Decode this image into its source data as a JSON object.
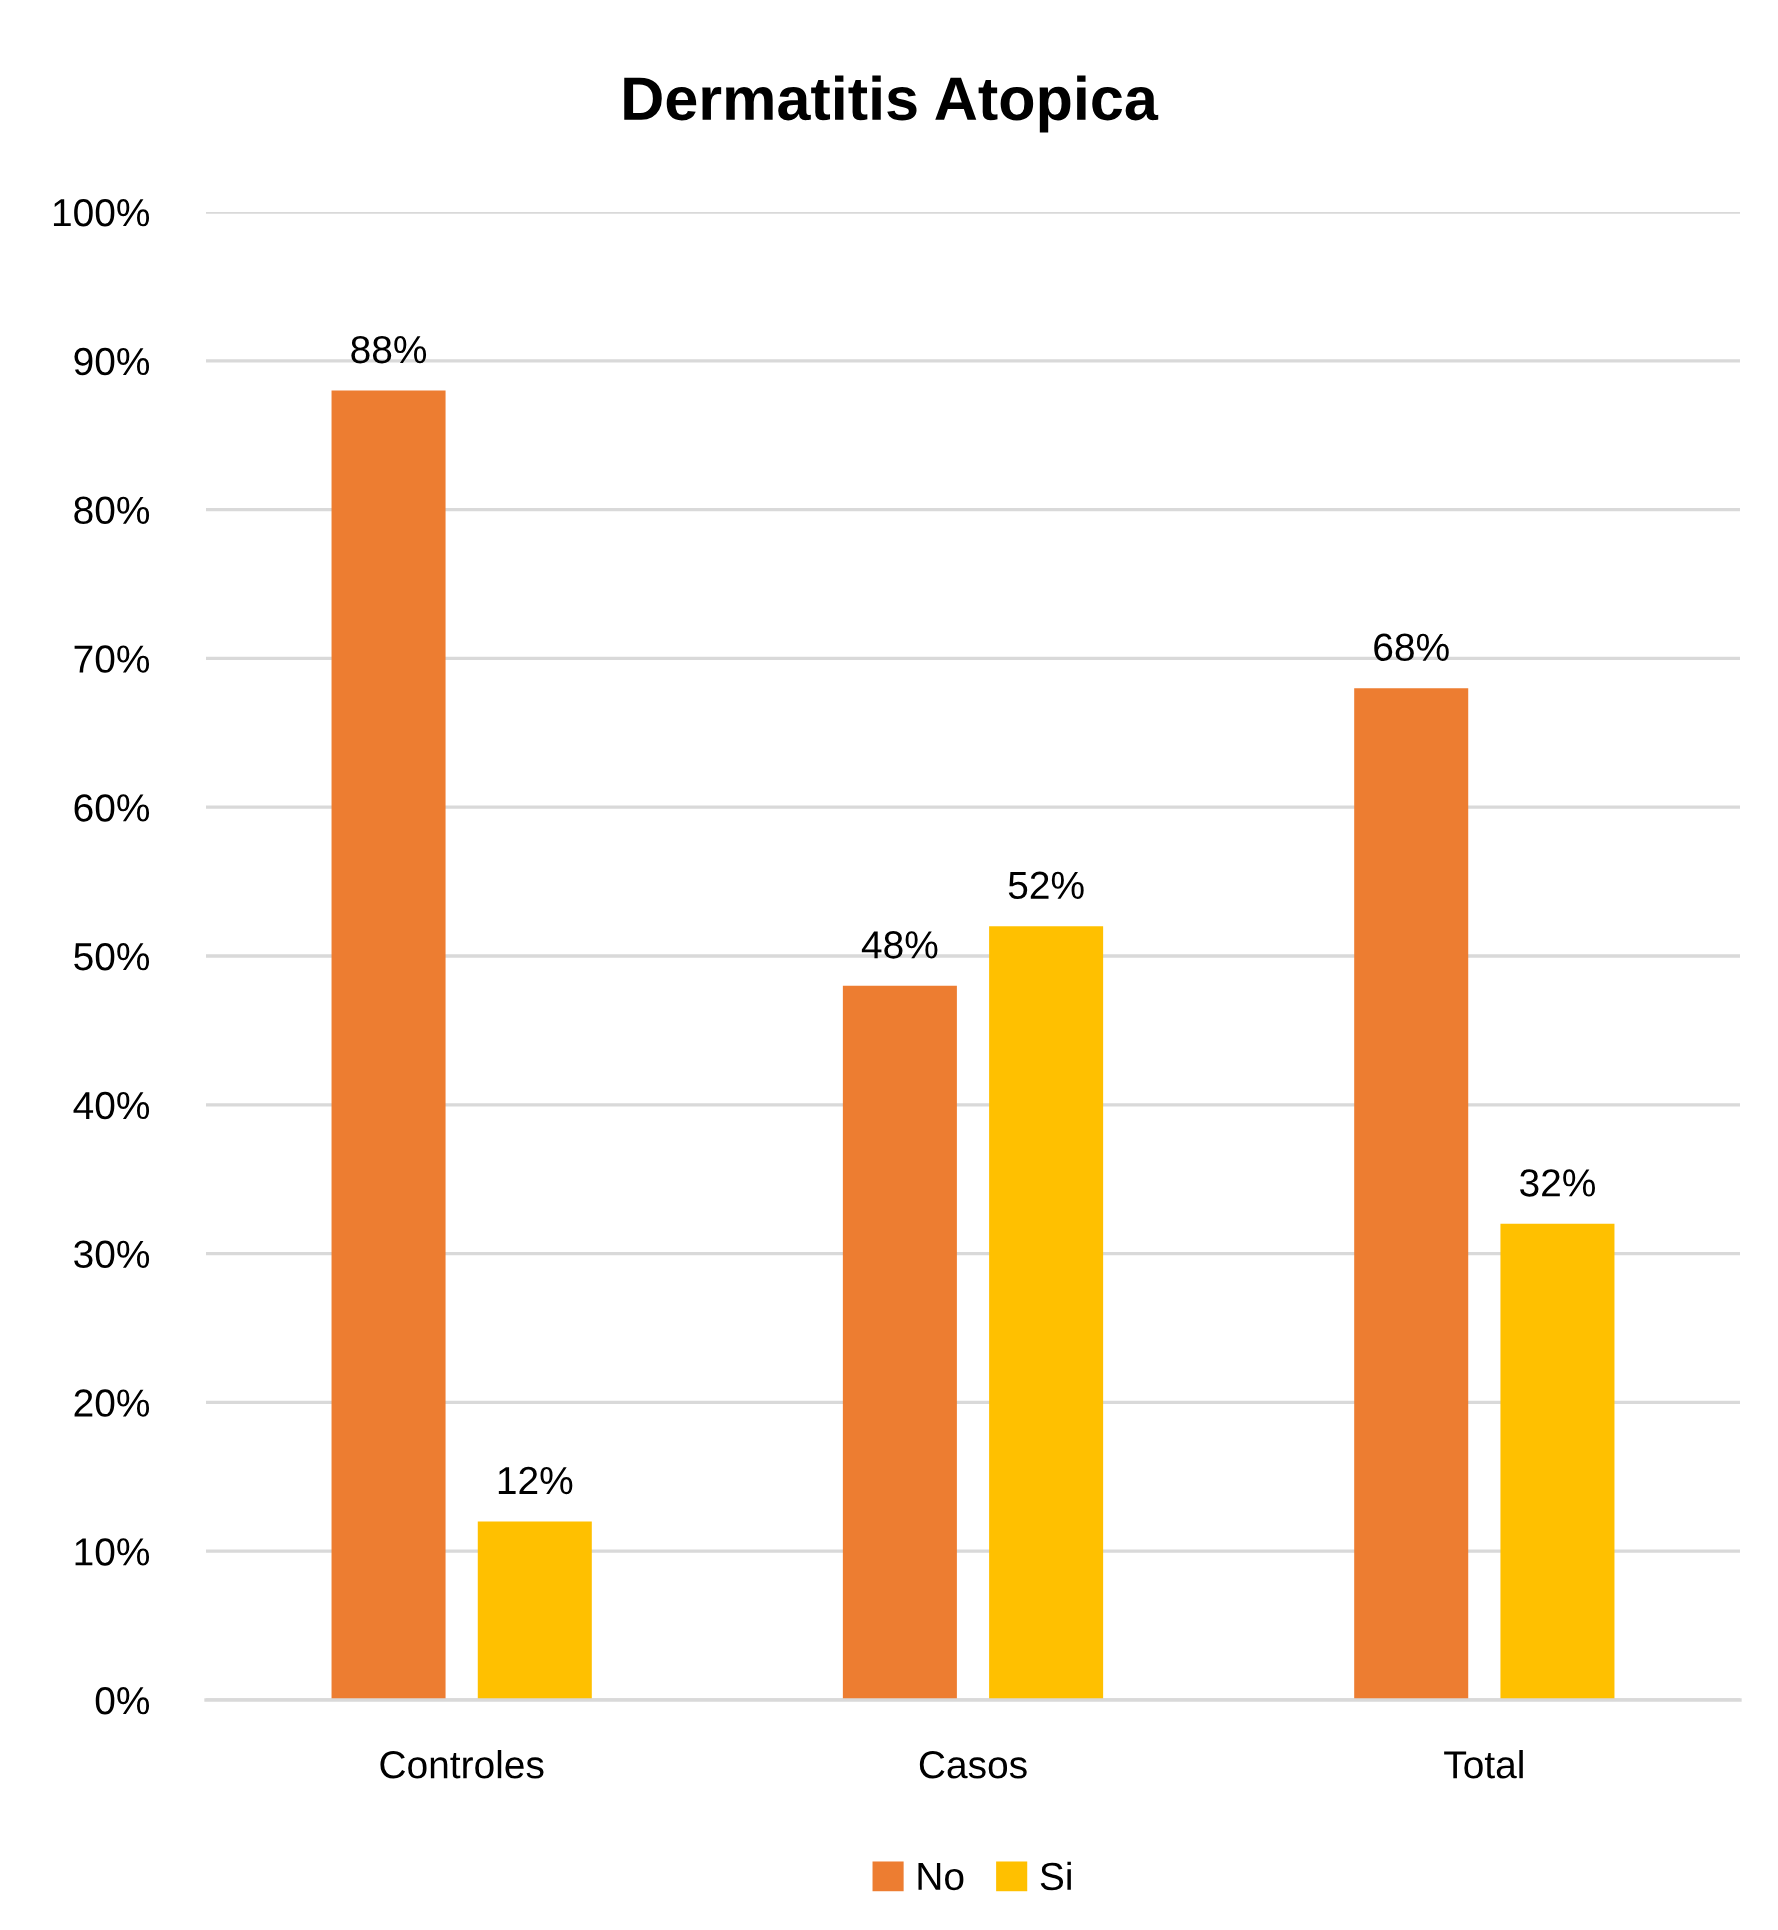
{
  "chart_data": {
    "type": "bar",
    "title": "Dermatitis Atopica",
    "categories": [
      "Controles",
      "Casos",
      "Total"
    ],
    "series": [
      {
        "name": "No",
        "color": "#ed7d31",
        "values": [
          88,
          48,
          68
        ],
        "value_labels": [
          "88%",
          "48%",
          "68%"
        ]
      },
      {
        "name": "Si",
        "color": "#ffc000",
        "values": [
          12,
          52,
          32
        ],
        "value_labels": [
          "12%",
          "52%",
          "32%"
        ]
      }
    ],
    "ylim": [
      0,
      100
    ],
    "yticks": [
      {
        "value": 0,
        "label": "0%"
      },
      {
        "value": 10,
        "label": "10%"
      },
      {
        "value": 20,
        "label": "20%"
      },
      {
        "value": 30,
        "label": "30%"
      },
      {
        "value": 40,
        "label": "40%"
      },
      {
        "value": 50,
        "label": "50%"
      },
      {
        "value": 60,
        "label": "60%"
      },
      {
        "value": 70,
        "label": "70%"
      },
      {
        "value": 80,
        "label": "80%"
      },
      {
        "value": 90,
        "label": "90%"
      },
      {
        "value": 100,
        "label": "100%"
      }
    ],
    "grid": "y",
    "legend": "bottom"
  }
}
